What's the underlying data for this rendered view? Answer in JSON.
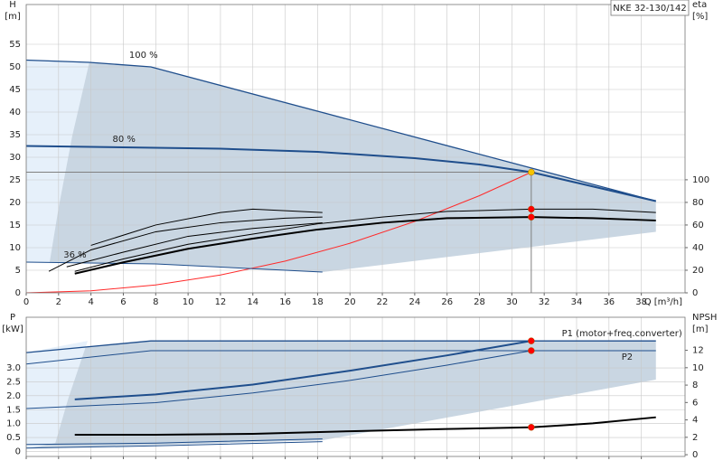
{
  "chart_data": [
    {
      "type": "line",
      "title": "NKE 32-130/142",
      "ylabel": "H",
      "yunit": "[m]",
      "y2label": "eta",
      "y2unit": "[%]",
      "xlabel": "Q [m³/h]",
      "xlim": [
        0,
        40.7
      ],
      "xticks": [
        0,
        2,
        4,
        6,
        8,
        10,
        12,
        14,
        16,
        18,
        20,
        22,
        24,
        26,
        28,
        30,
        32,
        34,
        36,
        38
      ],
      "ylim": [
        0,
        63.8
      ],
      "yticks": [
        0,
        5,
        10,
        15,
        20,
        25,
        30,
        35,
        40,
        45,
        50,
        55
      ],
      "y2lim": [
        0,
        255
      ],
      "y2ticks": [
        0,
        20,
        40,
        60,
        80,
        100
      ],
      "grid": true,
      "series": [
        {
          "kind": "area",
          "color": "#c9d6e2",
          "x": [
            0,
            3.9,
            7.7,
            38.9,
            38.9,
            18.3,
            8,
            0
          ],
          "values": [
            51.5,
            51,
            50,
            20.3,
            13.5,
            4.6,
            6.4,
            6.8
          ]
        },
        {
          "kind": "area",
          "color": "#e6f0fa",
          "x": [
            0,
            3.9,
            2.85,
            2,
            1.45,
            0
          ],
          "values": [
            51.5,
            51,
            34.8,
            18.8,
            6.8,
            6.8
          ]
        },
        {
          "kind": "line",
          "color": "#808080",
          "width": 1,
          "x": [
            0,
            31.2
          ],
          "values": [
            26.7,
            26.7
          ]
        },
        {
          "kind": "line",
          "color": "#808080",
          "width": 1,
          "x": [
            31.2,
            31.2
          ],
          "values": [
            0,
            26.7
          ]
        },
        {
          "kind": "line",
          "color": "#ff2a2a",
          "width": 1,
          "x": [
            0,
            4,
            8,
            12,
            16,
            20,
            24,
            28,
            31.2
          ],
          "values": [
            0,
            0.44,
            1.75,
            3.95,
            7.02,
            10.97,
            15.8,
            21.5,
            26.7
          ]
        },
        {
          "kind": "line",
          "name": "100 %",
          "color": "#1f4e8c",
          "width": 1.3,
          "x": [
            0,
            3.9,
            7.7,
            38.9
          ],
          "values": [
            51.5,
            51,
            50,
            20.3
          ]
        },
        {
          "kind": "line",
          "name": "80 %",
          "color": "#1f4e8c",
          "width": 2,
          "x": [
            0,
            6,
            12,
            18,
            24,
            28,
            31.2,
            38.9
          ],
          "values": [
            32.5,
            32.2,
            31.9,
            31.2,
            29.8,
            28.4,
            26.7,
            20.3
          ]
        },
        {
          "kind": "line",
          "name": "36 %",
          "color": "#1f4e8c",
          "width": 1,
          "x": [
            0,
            8,
            18.3
          ],
          "values": [
            6.8,
            6.4,
            4.6
          ]
        },
        {
          "kind": "line",
          "axis": "y2",
          "color": "#000000",
          "width": 2,
          "x": [
            3,
            6,
            10,
            14,
            18,
            22,
            26,
            31.2,
            35,
            38.9
          ],
          "values": [
            17,
            27,
            39,
            48,
            56,
            62,
            66,
            67,
            66,
            64
          ]
        },
        {
          "kind": "line",
          "axis": "y2",
          "color": "#000000",
          "width": 1,
          "x": [
            3,
            6,
            10,
            14,
            18,
            22,
            26,
            31.2,
            35,
            38.9
          ],
          "values": [
            19,
            30,
            43,
            52,
            61,
            67,
            72,
            74,
            74,
            71
          ]
        },
        {
          "kind": "line",
          "axis": "y2",
          "color": "#000000",
          "width": 1,
          "x": [
            2.5,
            6,
            10,
            14,
            18.3
          ],
          "values": [
            23,
            36,
            50,
            57,
            62
          ]
        },
        {
          "kind": "line",
          "axis": "y2",
          "color": "#000000",
          "width": 1,
          "x": [
            4,
            8,
            12,
            14,
            18.3
          ],
          "values": [
            42,
            60,
            71,
            74,
            71
          ]
        },
        {
          "kind": "line",
          "axis": "y2",
          "color": "#000000",
          "width": 1,
          "x": [
            1.4,
            4,
            8,
            12,
            16,
            18.3
          ],
          "values": [
            19,
            38,
            54,
            62,
            66,
            67
          ]
        },
        {
          "kind": "points",
          "color": "#f5c400",
          "x": [
            31.2
          ],
          "values": [
            26.7
          ]
        },
        {
          "kind": "points",
          "axis": "y2",
          "color": "#ff0000",
          "x": [
            31.2,
            31.2
          ],
          "values": [
            74,
            67
          ]
        }
      ]
    },
    {
      "type": "line",
      "ylabel": "P",
      "yunit": "[kW]",
      "y2label": "NPSH",
      "y2unit": "[m]",
      "xlim": [
        0,
        40.7
      ],
      "xticks": [
        0,
        2,
        4,
        6,
        8,
        10,
        12,
        14,
        16,
        18,
        20,
        22,
        24,
        26,
        28,
        30,
        32,
        34,
        36,
        38
      ],
      "ylim": [
        -0.18,
        4.82
      ],
      "yticks": [
        0,
        0.5,
        {
          "value": 1,
          "label": "1.0"
        },
        1.5,
        {
          "value": 2,
          "label": "2.0"
        },
        2.5,
        {
          "value": 3,
          "label": "3.0"
        }
      ],
      "y2lim": [
        -0.2,
        15.8
      ],
      "y2ticks": [
        0,
        2,
        4,
        6,
        8,
        10,
        12
      ],
      "grid": true,
      "series": [
        {
          "kind": "area",
          "color": "#c9d6e2",
          "x": [
            0,
            7.7,
            38.9,
            38.9,
            18.3,
            0
          ],
          "values": [
            3.55,
            3.97,
            3.97,
            2.58,
            0.4,
            0.1
          ]
        },
        {
          "kind": "area",
          "color": "#e6f0fa",
          "x": [
            0,
            3.8,
            2.6,
            1.8,
            0
          ],
          "values": [
            3.55,
            3.97,
            1.9,
            0.3,
            0.1
          ]
        },
        {
          "kind": "line",
          "name": "P1 (motor+freq.converter)",
          "color": "#1f4e8c",
          "width": 1.3,
          "x": [
            0,
            7.7,
            38.9
          ],
          "values": [
            3.55,
            3.97,
            3.97
          ]
        },
        {
          "kind": "line",
          "name": "P2",
          "color": "#1f4e8c",
          "width": 1,
          "x": [
            0,
            7.7,
            38.9
          ],
          "values": [
            3.14,
            3.62,
            3.62
          ]
        },
        {
          "kind": "line",
          "color": "#1f4e8c",
          "width": 2,
          "x": [
            3,
            8,
            14,
            20,
            26,
            31.2
          ],
          "values": [
            1.87,
            2.05,
            2.4,
            2.9,
            3.45,
            3.97
          ]
        },
        {
          "kind": "line",
          "color": "#1f4e8c",
          "width": 1,
          "x": [
            0,
            8,
            14,
            20,
            26,
            31.2
          ],
          "values": [
            1.54,
            1.75,
            2.1,
            2.55,
            3.1,
            3.62
          ]
        },
        {
          "kind": "line",
          "color": "#1f4e8c",
          "width": 1,
          "x": [
            0,
            8,
            18.3
          ],
          "values": [
            0.25,
            0.3,
            0.45
          ]
        },
        {
          "kind": "line",
          "color": "#1f4e8c",
          "width": 1,
          "x": [
            0,
            8,
            18.3
          ],
          "values": [
            0.12,
            0.2,
            0.35
          ]
        },
        {
          "kind": "line",
          "axis": "y2",
          "color": "#000000",
          "width": 2,
          "x": [
            3,
            8,
            14,
            20,
            26,
            31.2,
            35,
            38.9
          ],
          "values": [
            2.3,
            2.3,
            2.4,
            2.7,
            2.95,
            3.15,
            3.6,
            4.3
          ]
        },
        {
          "kind": "points",
          "color": "#ff0000",
          "x": [
            31.2,
            31.2
          ],
          "values": [
            3.97,
            3.62
          ]
        },
        {
          "kind": "points",
          "axis": "y2",
          "color": "#ff0000",
          "x": [
            31.2
          ],
          "values": [
            3.15
          ]
        }
      ]
    }
  ]
}
